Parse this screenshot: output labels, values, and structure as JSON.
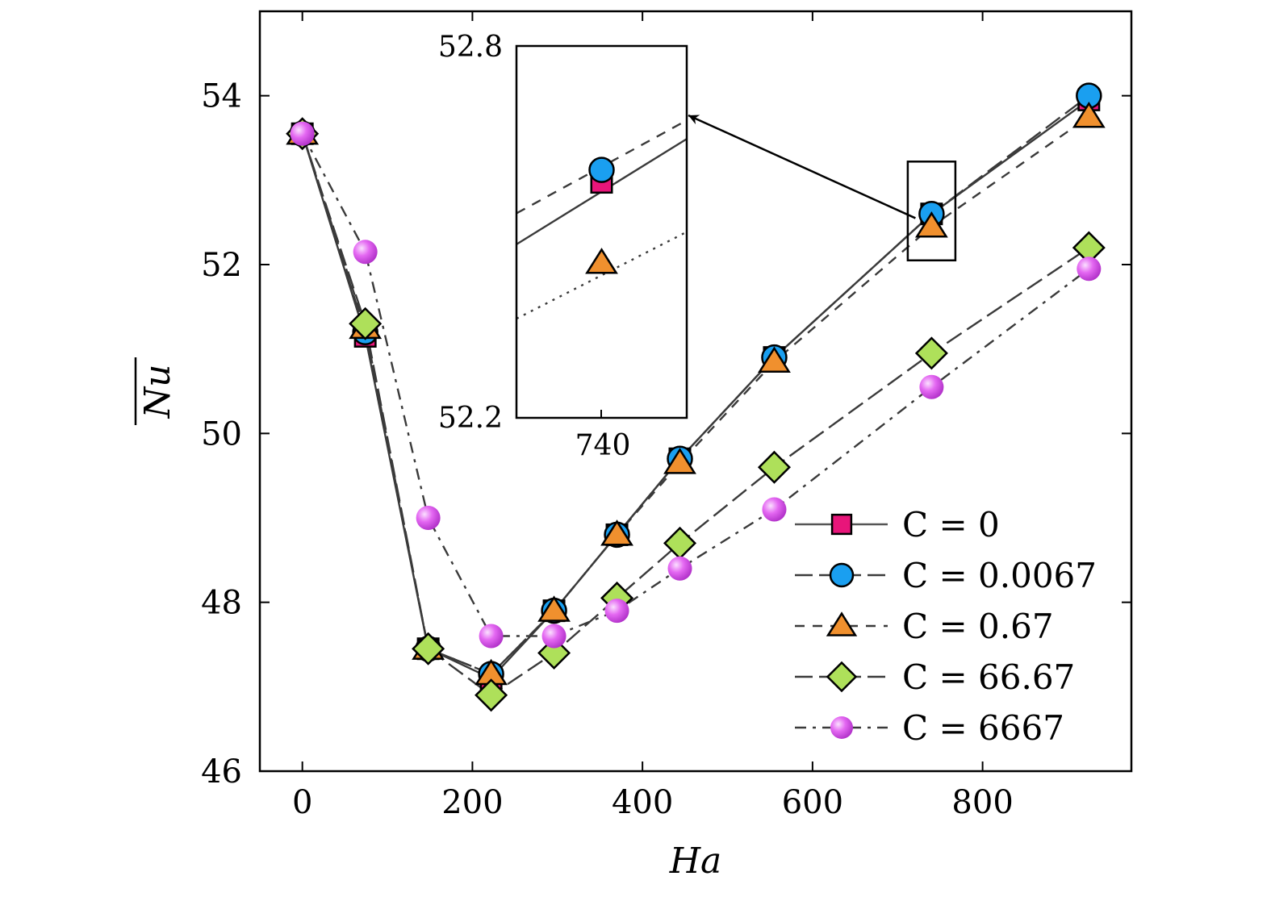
{
  "chart_data": {
    "type": "line",
    "xlabel": "Ha",
    "ylabel": "Nu",
    "xlim": [
      -50,
      975
    ],
    "ylim": [
      46,
      55
    ],
    "x_ticks": [
      0,
      200,
      400,
      600,
      800
    ],
    "y_ticks": [
      46,
      48,
      50,
      52,
      54
    ],
    "legend_position": "bottom-right",
    "grid": false,
    "colors": {
      "magenta": "#e8157a",
      "blue": "#1a9ff0",
      "orange": "#f0902e",
      "green": "#aee05a",
      "pink": "#e060f0",
      "line": "#3a3a3a"
    },
    "series": [
      {
        "name": "C = 0",
        "marker": "square",
        "line_style": "solid",
        "color": "#e8157a",
        "x": [
          0,
          74,
          148,
          222,
          296,
          370,
          444,
          555,
          740,
          925
        ],
        "y": [
          53.55,
          51.15,
          47.45,
          47.1,
          47.9,
          48.8,
          49.7,
          50.9,
          52.6,
          53.95
        ]
      },
      {
        "name": "C = 0.0067",
        "marker": "circle",
        "line_style": "longdash",
        "color": "#1a9ff0",
        "x": [
          0,
          74,
          148,
          222,
          296,
          370,
          444,
          555,
          740,
          925
        ],
        "y": [
          53.55,
          51.2,
          47.45,
          47.15,
          47.9,
          48.8,
          49.7,
          50.9,
          52.6,
          54.0
        ]
      },
      {
        "name": "C = 0.67",
        "marker": "triangle",
        "line_style": "dash",
        "color": "#f0902e",
        "x": [
          0,
          74,
          148,
          222,
          296,
          370,
          444,
          555,
          740,
          925
        ],
        "y": [
          53.55,
          51.25,
          47.45,
          47.15,
          47.9,
          48.8,
          49.65,
          50.85,
          52.45,
          53.75
        ]
      },
      {
        "name": "C = 66.67",
        "marker": "diamond",
        "line_style": "longdash",
        "color": "#aee05a",
        "x": [
          0,
          74,
          148,
          222,
          296,
          370,
          444,
          555,
          740,
          925
        ],
        "y": [
          53.55,
          51.3,
          47.45,
          46.9,
          47.4,
          48.05,
          48.7,
          49.6,
          50.95,
          52.2
        ]
      },
      {
        "name": "C = 6667",
        "marker": "sphere",
        "line_style": "dashdot",
        "color": "#e060f0",
        "x": [
          0,
          74,
          148,
          222,
          296,
          370,
          444,
          555,
          740,
          925
        ],
        "y": [
          53.55,
          52.15,
          49.0,
          47.6,
          47.6,
          47.9,
          48.4,
          49.1,
          50.55,
          51.95
        ]
      }
    ],
    "inset": {
      "xlabel_tick": "740",
      "y_top_label": "52.8",
      "y_bottom_label": "52.2",
      "ylim": [
        52.2,
        52.8
      ],
      "xlim": [
        718,
        762
      ],
      "points": [
        {
          "series": "C = 0",
          "marker": "square",
          "x": 740,
          "y": 52.58
        },
        {
          "series": "C = 0.0067",
          "marker": "circle",
          "x": 740,
          "y": 52.6
        },
        {
          "series": "C = 0.67",
          "marker": "triangle",
          "x": 740,
          "y": 52.45
        }
      ],
      "lines": [
        {
          "style": "dash",
          "y_at_xlim": [
            52.53,
            52.68
          ]
        },
        {
          "style": "solid",
          "y_at_xlim": [
            52.48,
            52.65
          ]
        },
        {
          "style": "dot",
          "y_at_xlim": [
            52.36,
            52.5
          ]
        }
      ],
      "highlight_box": {
        "x_range": [
          712,
          768
        ],
        "y_range": [
          52.05,
          53.22
        ]
      }
    }
  }
}
